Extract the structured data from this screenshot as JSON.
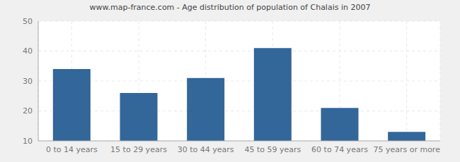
{
  "chart_data": {
    "type": "bar",
    "title": "www.map-france.com - Age distribution of population of Chalais in 2007",
    "categories": [
      "0 to 14 years",
      "15 to 29 years",
      "30 to 44 years",
      "45 to 59 years",
      "60 to 74 years",
      "75 years or more"
    ],
    "values": [
      34,
      26,
      31,
      41,
      21,
      13
    ],
    "color": "#336699",
    "ylim": [
      10,
      50
    ],
    "yticks": [
      10,
      20,
      30,
      40,
      50
    ],
    "grid": true
  }
}
